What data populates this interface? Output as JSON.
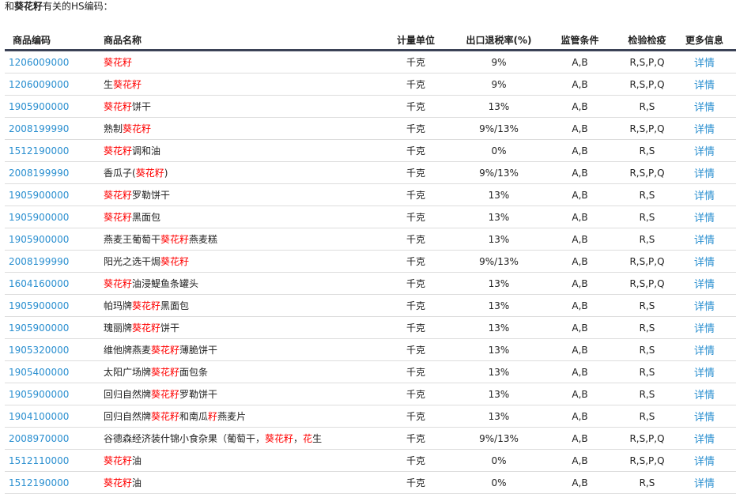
{
  "intro": {
    "prefix": "和",
    "keyword": "葵花籽",
    "suffix": "有关的HS编码："
  },
  "headers": [
    "商品编码",
    "商品名称",
    "计量单位",
    "出口退税率(%)",
    "监管条件",
    "检验检疫",
    "更多信息"
  ],
  "accent": "#2a8fd0",
  "highlight": "#ff0000",
  "rows": [
    {
      "code": "1206009000",
      "name": [
        {
          "t": "葵花籽",
          "hl": true
        }
      ],
      "unit": "千克",
      "rate": "9%",
      "cond": "A,B",
      "insp": "R,S,P,Q",
      "more": "详情"
    },
    {
      "code": "1206009000",
      "name": [
        {
          "t": "生"
        },
        {
          "t": "葵花籽",
          "hl": true
        }
      ],
      "unit": "千克",
      "rate": "9%",
      "cond": "A,B",
      "insp": "R,S,P,Q",
      "more": "详情"
    },
    {
      "code": "1905900000",
      "name": [
        {
          "t": "葵花籽",
          "hl": true
        },
        {
          "t": "饼干"
        }
      ],
      "unit": "千克",
      "rate": "13%",
      "cond": "A,B",
      "insp": "R,S",
      "more": "详情"
    },
    {
      "code": "2008199990",
      "name": [
        {
          "t": "熟制"
        },
        {
          "t": "葵花籽",
          "hl": true
        }
      ],
      "unit": "千克",
      "rate": "9%/13%",
      "cond": "A,B",
      "insp": "R,S,P,Q",
      "more": "详情"
    },
    {
      "code": "1512190000",
      "name": [
        {
          "t": "葵花籽",
          "hl": true
        },
        {
          "t": "调和油"
        }
      ],
      "unit": "千克",
      "rate": "0%",
      "cond": "A,B",
      "insp": "R,S",
      "more": "详情"
    },
    {
      "code": "2008199990",
      "name": [
        {
          "t": "香瓜子("
        },
        {
          "t": "葵花籽",
          "hl": true
        },
        {
          "t": ")"
        }
      ],
      "unit": "千克",
      "rate": "9%/13%",
      "cond": "A,B",
      "insp": "R,S,P,Q",
      "more": "详情"
    },
    {
      "code": "1905900000",
      "name": [
        {
          "t": "葵花籽",
          "hl": true
        },
        {
          "t": "罗勒饼干"
        }
      ],
      "unit": "千克",
      "rate": "13%",
      "cond": "A,B",
      "insp": "R,S",
      "more": "详情"
    },
    {
      "code": "1905900000",
      "name": [
        {
          "t": "葵花籽",
          "hl": true
        },
        {
          "t": "黑面包"
        }
      ],
      "unit": "千克",
      "rate": "13%",
      "cond": "A,B",
      "insp": "R,S",
      "more": "详情"
    },
    {
      "code": "1905900000",
      "name": [
        {
          "t": "燕麦王葡萄干"
        },
        {
          "t": "葵花籽",
          "hl": true
        },
        {
          "t": "燕麦糕"
        }
      ],
      "unit": "千克",
      "rate": "13%",
      "cond": "A,B",
      "insp": "R,S",
      "more": "详情"
    },
    {
      "code": "2008199990",
      "name": [
        {
          "t": "阳光之选干焗"
        },
        {
          "t": "葵花籽",
          "hl": true
        }
      ],
      "unit": "千克",
      "rate": "9%/13%",
      "cond": "A,B",
      "insp": "R,S,P,Q",
      "more": "详情"
    },
    {
      "code": "1604160000",
      "name": [
        {
          "t": "葵花籽",
          "hl": true
        },
        {
          "t": "油浸鳀鱼条罐头"
        }
      ],
      "unit": "千克",
      "rate": "13%",
      "cond": "A,B",
      "insp": "R,S,P,Q",
      "more": "详情"
    },
    {
      "code": "1905900000",
      "name": [
        {
          "t": "帕玛牌"
        },
        {
          "t": "葵花籽",
          "hl": true
        },
        {
          "t": "黑面包"
        }
      ],
      "unit": "千克",
      "rate": "13%",
      "cond": "A,B",
      "insp": "R,S",
      "more": "详情"
    },
    {
      "code": "1905900000",
      "name": [
        {
          "t": "瑰丽牌"
        },
        {
          "t": "葵花籽",
          "hl": true
        },
        {
          "t": "饼干"
        }
      ],
      "unit": "千克",
      "rate": "13%",
      "cond": "A,B",
      "insp": "R,S",
      "more": "详情"
    },
    {
      "code": "1905320000",
      "name": [
        {
          "t": "维他牌燕麦"
        },
        {
          "t": "葵花籽",
          "hl": true
        },
        {
          "t": "薄脆饼干"
        }
      ],
      "unit": "千克",
      "rate": "13%",
      "cond": "A,B",
      "insp": "R,S",
      "more": "详情"
    },
    {
      "code": "1905400000",
      "name": [
        {
          "t": "太阳广场牌"
        },
        {
          "t": "葵花籽",
          "hl": true
        },
        {
          "t": "面包条"
        }
      ],
      "unit": "千克",
      "rate": "13%",
      "cond": "A,B",
      "insp": "R,S",
      "more": "详情"
    },
    {
      "code": "1905900000",
      "name": [
        {
          "t": "回归自然牌"
        },
        {
          "t": "葵花籽",
          "hl": true
        },
        {
          "t": "罗勒饼干"
        }
      ],
      "unit": "千克",
      "rate": "13%",
      "cond": "A,B",
      "insp": "R,S",
      "more": "详情"
    },
    {
      "code": "1904100000",
      "name": [
        {
          "t": "回归自然牌"
        },
        {
          "t": "葵花籽",
          "hl": true
        },
        {
          "t": "和南瓜"
        },
        {
          "t": "籽",
          "hl": true
        },
        {
          "t": "燕麦片"
        }
      ],
      "unit": "千克",
      "rate": "13%",
      "cond": "A,B",
      "insp": "R,S",
      "more": "详情"
    },
    {
      "code": "2008970000",
      "name": [
        {
          "t": "谷德森经济装什锦小食杂果（葡萄干，"
        },
        {
          "t": "葵花籽",
          "hl": true
        },
        {
          "t": "，"
        },
        {
          "t": "花",
          "hl": true
        },
        {
          "t": "生"
        }
      ],
      "unit": "千克",
      "rate": "9%/13%",
      "cond": "A,B",
      "insp": "R,S,P,Q",
      "more": "详情"
    },
    {
      "code": "1512110000",
      "name": [
        {
          "t": "葵花籽",
          "hl": true
        },
        {
          "t": "油"
        }
      ],
      "unit": "千克",
      "rate": "0%",
      "cond": "A,B",
      "insp": "R,S,P,Q",
      "more": "详情"
    },
    {
      "code": "1512190000",
      "name": [
        {
          "t": "葵花籽",
          "hl": true
        },
        {
          "t": "油"
        }
      ],
      "unit": "千克",
      "rate": "0%",
      "cond": "A,B",
      "insp": "R,S",
      "more": "详情"
    }
  ]
}
